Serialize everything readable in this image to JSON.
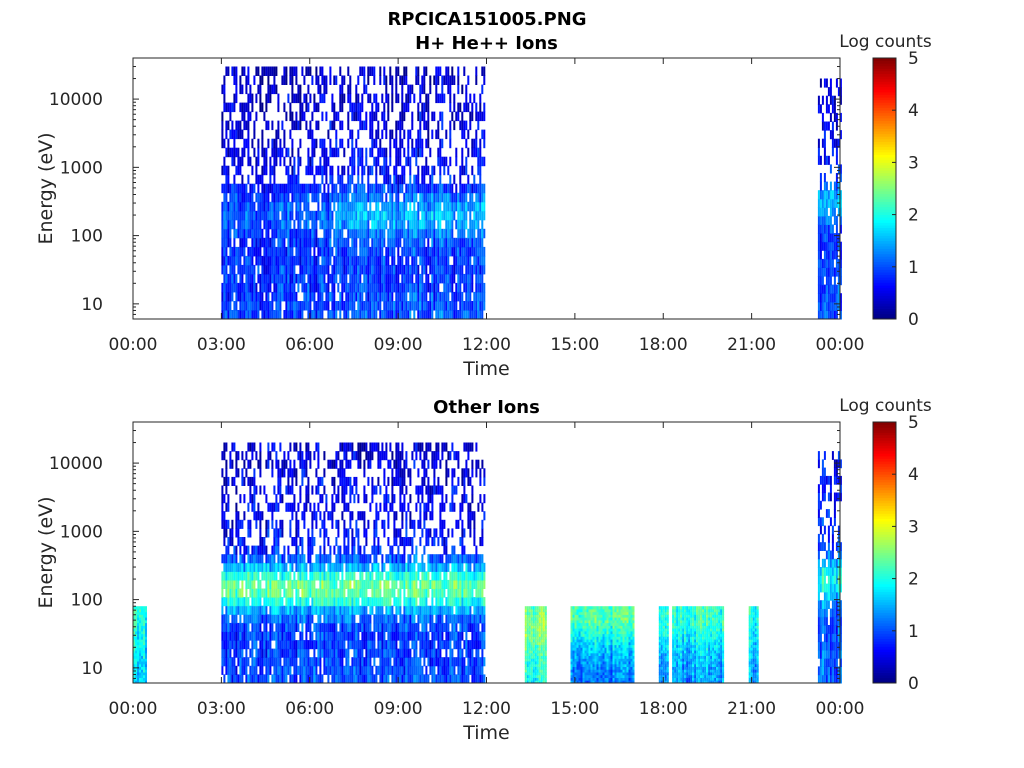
{
  "figure_title": "RPCICA151005.PNG",
  "chart_data": [
    {
      "type": "heatmap",
      "title": "H+ He++ Ions",
      "xlabel": "Time",
      "ylabel": "Energy (eV)",
      "x_ticks": [
        "00:00",
        "03:00",
        "06:00",
        "09:00",
        "12:00",
        "15:00",
        "18:00",
        "21:00",
        "00:00"
      ],
      "x_range_hours": [
        0,
        24
      ],
      "y_scale": "log",
      "y_ticks": [
        "10",
        "100",
        "1000",
        "10000"
      ],
      "y_tick_values": [
        10,
        100,
        1000,
        10000
      ],
      "ylim": [
        6,
        40000
      ],
      "colorbar": {
        "label": "Log counts",
        "ticks": [
          "0",
          "1",
          "2",
          "3",
          "4",
          "5"
        ],
        "range": [
          0,
          5
        ],
        "colormap": "jet"
      },
      "intervals": [
        {
          "start_h": 3.0,
          "end_h": 6.75,
          "energy_min": 6,
          "energy_max": 30000,
          "level_low_energy": 1.0,
          "level_high_energy": 0.3,
          "peak_energy": 200,
          "peak_level": 1.1
        },
        {
          "start_h": 6.8,
          "end_h": 11.95,
          "energy_min": 6,
          "energy_max": 30000,
          "level_low_energy": 1.0,
          "level_high_energy": 0.3,
          "peak_energy": 200,
          "peak_level": 1.5
        },
        {
          "start_h": 23.25,
          "end_h": 24.0,
          "energy_min": 6,
          "energy_max": 20000,
          "level_low_energy": 1.1,
          "level_high_energy": 0.5,
          "peak_energy": 300,
          "peak_level": 1.6
        }
      ]
    },
    {
      "type": "heatmap",
      "title": "Other Ions",
      "xlabel": "Time",
      "ylabel": "Energy (eV)",
      "x_ticks": [
        "00:00",
        "03:00",
        "06:00",
        "09:00",
        "12:00",
        "15:00",
        "18:00",
        "21:00",
        "00:00"
      ],
      "x_range_hours": [
        0,
        24
      ],
      "y_scale": "log",
      "y_ticks": [
        "10",
        "100",
        "1000",
        "10000"
      ],
      "y_tick_values": [
        10,
        100,
        1000,
        10000
      ],
      "ylim": [
        6,
        40000
      ],
      "colorbar": {
        "label": "Log counts",
        "ticks": [
          "0",
          "1",
          "2",
          "3",
          "4",
          "5"
        ],
        "range": [
          0,
          5
        ],
        "colormap": "jet"
      },
      "intervals": [
        {
          "start_h": 0.0,
          "end_h": 0.45,
          "energy_min": 6,
          "energy_max": 80,
          "level_low_energy": 1.6,
          "level_high_energy": 1.9,
          "peak_energy": 60,
          "peak_level": 2.0
        },
        {
          "start_h": 3.0,
          "end_h": 11.95,
          "energy_min": 6,
          "energy_max": 20000,
          "level_low_energy": 1.0,
          "level_high_energy": 0.4,
          "peak_energy": 150,
          "peak_level": 2.4
        },
        {
          "start_h": 13.3,
          "end_h": 14.0,
          "energy_min": 6,
          "energy_max": 80,
          "level_low_energy": 2.0,
          "level_high_energy": 2.2,
          "peak_energy": 40,
          "peak_level": 2.6
        },
        {
          "start_h": 14.85,
          "end_h": 17.0,
          "energy_min": 6,
          "energy_max": 80,
          "level_low_energy": 1.2,
          "level_high_energy": 1.9,
          "peak_energy": 60,
          "peak_level": 2.3
        },
        {
          "start_h": 17.85,
          "end_h": 18.15,
          "energy_min": 6,
          "energy_max": 80,
          "level_low_energy": 1.2,
          "level_high_energy": 1.8,
          "peak_energy": 60,
          "peak_level": 2.0
        },
        {
          "start_h": 18.3,
          "end_h": 20.0,
          "energy_min": 6,
          "energy_max": 80,
          "level_low_energy": 1.3,
          "level_high_energy": 1.9,
          "peak_energy": 60,
          "peak_level": 2.1
        },
        {
          "start_h": 20.9,
          "end_h": 21.2,
          "energy_min": 6,
          "energy_max": 80,
          "level_low_energy": 1.4,
          "level_high_energy": 1.9,
          "peak_energy": 60,
          "peak_level": 2.0
        },
        {
          "start_h": 23.25,
          "end_h": 24.0,
          "energy_min": 6,
          "energy_max": 15000,
          "level_low_energy": 1.2,
          "level_high_energy": 0.6,
          "peak_energy": 200,
          "peak_level": 2.0
        }
      ]
    }
  ]
}
